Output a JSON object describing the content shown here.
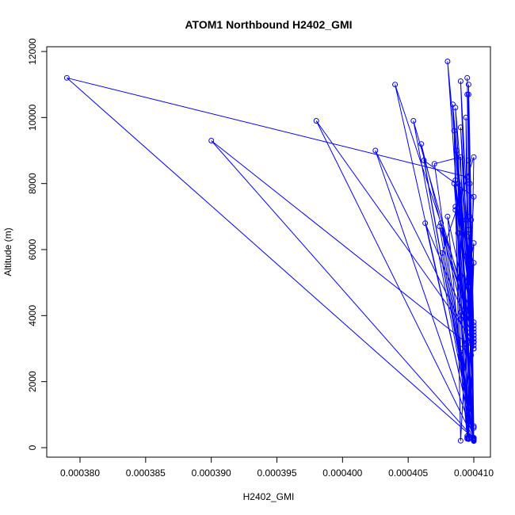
{
  "chart_data": {
    "type": "scatter",
    "title": "ATOM1 Northbound H2402_GMI",
    "xlabel": "H2402_GMI",
    "ylabel": "Altitude (m)",
    "xlim": [
      0.000377,
      0.000411
    ],
    "ylim": [
      0,
      12000
    ],
    "x_ticks": [
      0.00038,
      0.000385,
      0.00039,
      0.000395,
      0.0004,
      0.000405,
      0.00041
    ],
    "x_tick_labels": [
      "0.000380",
      "0.000385",
      "0.000390",
      "0.000395",
      "0.000400",
      "0.000405",
      "0.000410"
    ],
    "y_ticks": [
      0,
      2000,
      4000,
      6000,
      8000,
      10000,
      12000
    ],
    "y_tick_labels": [
      "0",
      "2000",
      "4000",
      "6000",
      "8000",
      "10000",
      "12000"
    ],
    "grid": false,
    "series": [
      {
        "color": "#0000ff",
        "marker": "open-circle",
        "connected": true,
        "x": [
          0.00041,
          0.000409,
          0.0004095,
          0.00041,
          0.000409,
          0.000408,
          0.0004095,
          0.000409,
          0.00041,
          0.0004088,
          0.0004095,
          0.00041,
          0.0004086,
          0.00041,
          0.0004098,
          0.0004092,
          0.0004096,
          0.000409,
          0.000407,
          0.00041,
          0.0004088,
          0.0004092,
          0.0004096,
          0.0004094,
          0.00041,
          0.0004075,
          0.00041,
          0.0004095,
          0.00041,
          0.000409,
          0.0004085,
          0.000409,
          0.00041,
          0.0004062,
          0.00041,
          0.000406,
          0.0004095,
          0.00041,
          0.0004086,
          0.000409,
          0.00041,
          0.0004074,
          0.00041,
          0.0004096,
          0.00041,
          0.0004076,
          0.00041,
          0.0004097,
          0.00041,
          0.0004086,
          0.00041,
          0.0004063,
          0.00041,
          0.000409,
          0.00041,
          0.0004094,
          0.00041,
          0.0004087,
          0.00041,
          0.0004096,
          0.00041,
          0.000408,
          0.00041,
          0.0004095,
          0.00041,
          0.000409,
          0.0004098,
          0.0004096,
          0.00041,
          0.0004054,
          0.00041,
          0.0004086,
          0.00041,
          0.0004084,
          0.00041,
          0.0004095,
          0.00041,
          0.0004096,
          0.00041,
          0.0004089,
          0.00041,
          0.000404,
          0.00041,
          0.0004085,
          0.00041,
          0.000398,
          0.00041,
          0.0004096,
          0.00041,
          0.00039,
          0.00041,
          0.0004025,
          0.00041,
          0.0004095,
          0.00041,
          0.0004097,
          0.00041,
          0.000379,
          0.0004095,
          0.00041,
          0.0004096,
          0.00041,
          0.0004094,
          0.00041
        ],
        "y": [
          200,
          2800,
          3200,
          250,
          5200,
          7000,
          300,
          4100,
          220,
          6500,
          350,
          5600,
          7300,
          260,
          6900,
          4000,
          280,
          8800,
          8600,
          230,
          8000,
          2400,
          310,
          10000,
          240,
          6800,
          3300,
          270,
          6200,
          3900,
          9600,
          210,
          7600,
          8700,
          290,
          9200,
          3500,
          250,
          7200,
          3000,
          220,
          6700,
          3400,
          260,
          8800,
          5900,
          230,
          8000,
          3600,
          10300,
          240,
          6800,
          3300,
          11100,
          260,
          6900,
          3700,
          9000,
          210,
          11000,
          3100,
          11700,
          240,
          6400,
          3200,
          9700,
          2800,
          10700,
          220,
          9900,
          3500,
          8100,
          260,
          10400,
          3000,
          11200,
          270,
          6600,
          3200,
          6500,
          230,
          11000,
          3800,
          8000,
          260,
          9900,
          3200,
          8700,
          280,
          9300,
          3000,
          9000,
          290,
          10700,
          600,
          7000,
          280,
          11200,
          8200,
          300,
          6600,
          3400,
          5800,
          650
        ]
      }
    ]
  }
}
